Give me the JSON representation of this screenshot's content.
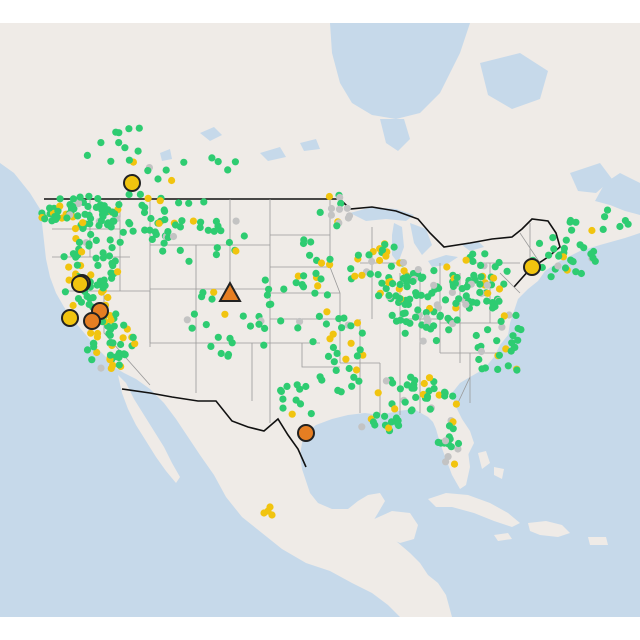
{
  "map": {
    "basemap": "light-gray-terrain",
    "colors": {
      "ocean": "#c6d9ea",
      "land": "#efebe7",
      "land_mexico": "#f0ece6",
      "lakes": "#c6d9ea",
      "state_borders": "#9a9a9a",
      "country_border": "#111111",
      "marker_good": "#2ecc71",
      "marker_moderate": "#f1c40f",
      "marker_usg": "#e67e22",
      "marker_nodata": "#c3c3c3",
      "marker_outline": "#222222"
    },
    "marker_categories": [
      "good",
      "moderate",
      "unhealthy-for-sensitive-groups",
      "no-data"
    ],
    "highlight_marker_shapes": [
      "circle",
      "triangle"
    ]
  }
}
